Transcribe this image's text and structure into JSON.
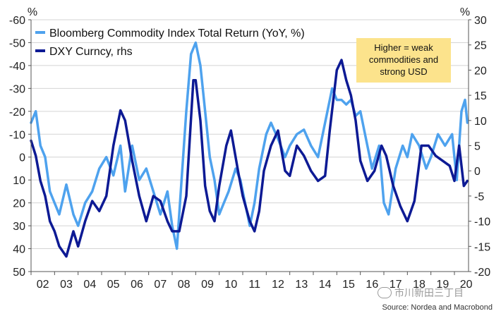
{
  "chart_data": {
    "type": "line",
    "legend_position": "top-left",
    "grid": true,
    "left_axis": {
      "unit_label": "%",
      "inverted": true,
      "ylim": [
        -60,
        50
      ],
      "ticks": [
        "-60",
        "-50",
        "-40",
        "-30",
        "-20",
        "-10",
        "0",
        "10",
        "20",
        "30",
        "40",
        "50"
      ]
    },
    "right_axis": {
      "unit_label": "%",
      "ylim": [
        -20,
        30
      ],
      "ticks": [
        "30",
        "25",
        "20",
        "15",
        "10",
        "5",
        "0",
        "-5",
        "-10",
        "-15",
        "-20"
      ]
    },
    "x_ticks": [
      "02",
      "03",
      "04",
      "05",
      "06",
      "07",
      "08",
      "09",
      "10",
      "11",
      "12",
      "13",
      "14",
      "15",
      "16",
      "17",
      "18",
      "19",
      "20"
    ],
    "xlim": [
      2002.0,
      2020.6
    ],
    "series": [
      {
        "name": "Bloomberg Commodity Index Total Return (YoY, %)",
        "axis": "left",
        "color": "#4ea2ee",
        "points": [
          [
            2002.0,
            -15
          ],
          [
            2002.2,
            -20
          ],
          [
            2002.4,
            -5
          ],
          [
            2002.6,
            0
          ],
          [
            2002.8,
            15
          ],
          [
            2003.0,
            20
          ],
          [
            2003.2,
            25
          ],
          [
            2003.5,
            12
          ],
          [
            2003.8,
            25
          ],
          [
            2004.0,
            30
          ],
          [
            2004.3,
            20
          ],
          [
            2004.6,
            15
          ],
          [
            2004.9,
            5
          ],
          [
            2005.2,
            0
          ],
          [
            2005.5,
            8
          ],
          [
            2005.8,
            -5
          ],
          [
            2006.0,
            15
          ],
          [
            2006.3,
            -5
          ],
          [
            2006.6,
            10
          ],
          [
            2006.9,
            5
          ],
          [
            2007.2,
            15
          ],
          [
            2007.5,
            25
          ],
          [
            2007.8,
            15
          ],
          [
            2008.0,
            30
          ],
          [
            2008.2,
            40
          ],
          [
            2008.4,
            10
          ],
          [
            2008.6,
            -20
          ],
          [
            2008.8,
            -45
          ],
          [
            2009.0,
            -50
          ],
          [
            2009.2,
            -40
          ],
          [
            2009.4,
            -20
          ],
          [
            2009.6,
            0
          ],
          [
            2009.8,
            10
          ],
          [
            2010.0,
            25
          ],
          [
            2010.2,
            20
          ],
          [
            2010.4,
            15
          ],
          [
            2010.7,
            5
          ],
          [
            2010.9,
            10
          ],
          [
            2011.1,
            20
          ],
          [
            2011.3,
            30
          ],
          [
            2011.5,
            20
          ],
          [
            2011.7,
            5
          ],
          [
            2012.0,
            -10
          ],
          [
            2012.2,
            -15
          ],
          [
            2012.5,
            -8
          ],
          [
            2012.8,
            0
          ],
          [
            2013.0,
            -5
          ],
          [
            2013.3,
            -10
          ],
          [
            2013.6,
            -12
          ],
          [
            2013.9,
            -5
          ],
          [
            2014.2,
            0
          ],
          [
            2014.5,
            -15
          ],
          [
            2014.8,
            -30
          ],
          [
            2015.0,
            -25
          ],
          [
            2015.2,
            -25
          ],
          [
            2015.4,
            -23
          ],
          [
            2015.6,
            -25
          ],
          [
            2015.8,
            -18
          ],
          [
            2016.0,
            -20
          ],
          [
            2016.2,
            -10
          ],
          [
            2016.5,
            5
          ],
          [
            2016.8,
            -5
          ],
          [
            2017.0,
            20
          ],
          [
            2017.2,
            25
          ],
          [
            2017.5,
            5
          ],
          [
            2017.8,
            -5
          ],
          [
            2018.0,
            0
          ],
          [
            2018.2,
            -10
          ],
          [
            2018.5,
            -5
          ],
          [
            2018.8,
            5
          ],
          [
            2019.0,
            0
          ],
          [
            2019.3,
            -10
          ],
          [
            2019.6,
            -5
          ],
          [
            2019.9,
            -10
          ],
          [
            2020.1,
            10
          ],
          [
            2020.3,
            -20
          ],
          [
            2020.45,
            -25
          ],
          [
            2020.55,
            -15
          ]
        ]
      },
      {
        "name": "DXY Curncy, rhs",
        "axis": "right",
        "color": "#0d1a94",
        "points": [
          [
            2002.0,
            6
          ],
          [
            2002.2,
            3
          ],
          [
            2002.4,
            -2
          ],
          [
            2002.6,
            -5
          ],
          [
            2002.8,
            -10
          ],
          [
            2003.0,
            -12
          ],
          [
            2003.2,
            -15
          ],
          [
            2003.5,
            -17
          ],
          [
            2003.8,
            -12
          ],
          [
            2004.0,
            -15
          ],
          [
            2004.3,
            -10
          ],
          [
            2004.6,
            -6
          ],
          [
            2004.9,
            -8
          ],
          [
            2005.2,
            -5
          ],
          [
            2005.5,
            5
          ],
          [
            2005.8,
            12
          ],
          [
            2006.0,
            10
          ],
          [
            2006.3,
            2
          ],
          [
            2006.6,
            -5
          ],
          [
            2006.9,
            -10
          ],
          [
            2007.2,
            -5
          ],
          [
            2007.5,
            -6
          ],
          [
            2007.8,
            -10
          ],
          [
            2008.0,
            -12
          ],
          [
            2008.3,
            -12
          ],
          [
            2008.6,
            -5
          ],
          [
            2008.9,
            18
          ],
          [
            2009.0,
            18
          ],
          [
            2009.2,
            10
          ],
          [
            2009.4,
            -3
          ],
          [
            2009.6,
            -8
          ],
          [
            2009.8,
            -10
          ],
          [
            2010.0,
            -3
          ],
          [
            2010.3,
            5
          ],
          [
            2010.5,
            8
          ],
          [
            2010.8,
            0
          ],
          [
            2011.0,
            -5
          ],
          [
            2011.3,
            -10
          ],
          [
            2011.5,
            -12
          ],
          [
            2011.7,
            -8
          ],
          [
            2011.9,
            0
          ],
          [
            2012.2,
            5
          ],
          [
            2012.5,
            8
          ],
          [
            2012.8,
            0
          ],
          [
            2013.0,
            -1
          ],
          [
            2013.3,
            5
          ],
          [
            2013.6,
            3
          ],
          [
            2013.9,
            0
          ],
          [
            2014.2,
            -2
          ],
          [
            2014.5,
            -1
          ],
          [
            2014.7,
            8
          ],
          [
            2015.0,
            20
          ],
          [
            2015.2,
            22
          ],
          [
            2015.4,
            18
          ],
          [
            2015.6,
            15
          ],
          [
            2015.8,
            10
          ],
          [
            2016.0,
            2
          ],
          [
            2016.3,
            -2
          ],
          [
            2016.6,
            0
          ],
          [
            2016.9,
            5
          ],
          [
            2017.1,
            3
          ],
          [
            2017.4,
            -3
          ],
          [
            2017.7,
            -7
          ],
          [
            2018.0,
            -10
          ],
          [
            2018.3,
            -6
          ],
          [
            2018.6,
            5
          ],
          [
            2018.9,
            5
          ],
          [
            2019.2,
            3
          ],
          [
            2019.5,
            2
          ],
          [
            2019.8,
            1
          ],
          [
            2020.0,
            -2
          ],
          [
            2020.2,
            5
          ],
          [
            2020.4,
            -3
          ],
          [
            2020.55,
            -2
          ]
        ]
      }
    ]
  },
  "annotation": {
    "lines": [
      "Higher = weak",
      "commodities and",
      "strong USD"
    ]
  },
  "source": "Source: Nordea and Macrobond",
  "watermark": "市川新田三丁目",
  "colors": {
    "annotation_fill": "#fce38c",
    "grid": "#d4d4d4",
    "axis": "#555555"
  }
}
